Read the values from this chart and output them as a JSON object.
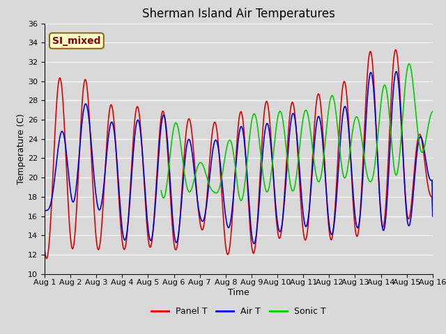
{
  "title": "Sherman Island Air Temperatures",
  "xlabel": "Time",
  "ylabel": "Temperature (C)",
  "ylim": [
    10,
    36
  ],
  "yticks": [
    10,
    12,
    14,
    16,
    18,
    20,
    22,
    24,
    26,
    28,
    30,
    32,
    34,
    36
  ],
  "xlim": [
    0,
    15
  ],
  "xtick_labels": [
    "Aug 1",
    "Aug 2",
    "Aug 3",
    "Aug 4",
    "Aug 5",
    "Aug 6",
    "Aug 7",
    "Aug 8",
    "Aug 9",
    "Aug 10",
    "Aug 11",
    "Aug 12",
    "Aug 13",
    "Aug 14",
    "Aug 15",
    "Aug 16"
  ],
  "xtick_positions": [
    0,
    1,
    2,
    3,
    4,
    5,
    6,
    7,
    8,
    9,
    10,
    11,
    12,
    13,
    14,
    15
  ],
  "panel_t_color": "#dd0000",
  "air_t_color": "#0000dd",
  "sonic_t_color": "#00cc00",
  "line_width": 1.2,
  "background_color": "#d9d9d9",
  "plot_bg_color": "#d9d9d9",
  "annotation_text": "SI_mixed",
  "annotation_color": "#8b0000",
  "annotation_bg": "#ffffcc",
  "title_fontsize": 12,
  "axis_label_fontsize": 9,
  "tick_fontsize": 8,
  "legend_fontsize": 9,
  "n_points": 720,
  "panel_t_peaks": [
    28.3,
    31.8,
    29.0,
    26.5,
    28.0,
    26.1,
    26.1,
    25.5,
    27.8,
    28.0,
    27.7,
    29.4,
    30.4,
    35.0,
    32.0,
    18.0
  ],
  "panel_t_troughs": [
    11.5,
    12.6,
    12.5,
    12.5,
    12.8,
    12.3,
    14.8,
    12.0,
    12.0,
    13.7,
    13.5,
    13.5,
    13.8,
    14.8,
    15.5,
    18.0
  ],
  "air_t_peaks": [
    17.0,
    29.2,
    26.6,
    25.2,
    26.5,
    26.5,
    22.2,
    25.0,
    25.5,
    25.7,
    27.3,
    25.7,
    28.5,
    32.5,
    30.0,
    19.8
  ],
  "air_t_troughs": [
    16.5,
    17.5,
    17.0,
    13.5,
    13.5,
    13.0,
    15.5,
    15.0,
    13.0,
    14.3,
    15.0,
    14.0,
    14.8,
    14.5,
    14.5,
    19.8
  ],
  "sonic_t_start_idx": 4.5,
  "sonic_t_peaks": [
    27.8,
    24.2,
    19.5,
    26.5,
    26.7,
    27.0,
    27.0,
    29.5,
    24.0,
    33.0,
    31.0,
    23.5
  ],
  "sonic_t_troughs": [
    17.8,
    18.5,
    18.5,
    17.5,
    18.5,
    18.5,
    19.5,
    20.0,
    19.5,
    20.0,
    22.5,
    23.5
  ],
  "panel_t_peak_phase": 0.58,
  "air_t_peak_phase": 0.6,
  "sonic_t_peak_phase": 0.6
}
